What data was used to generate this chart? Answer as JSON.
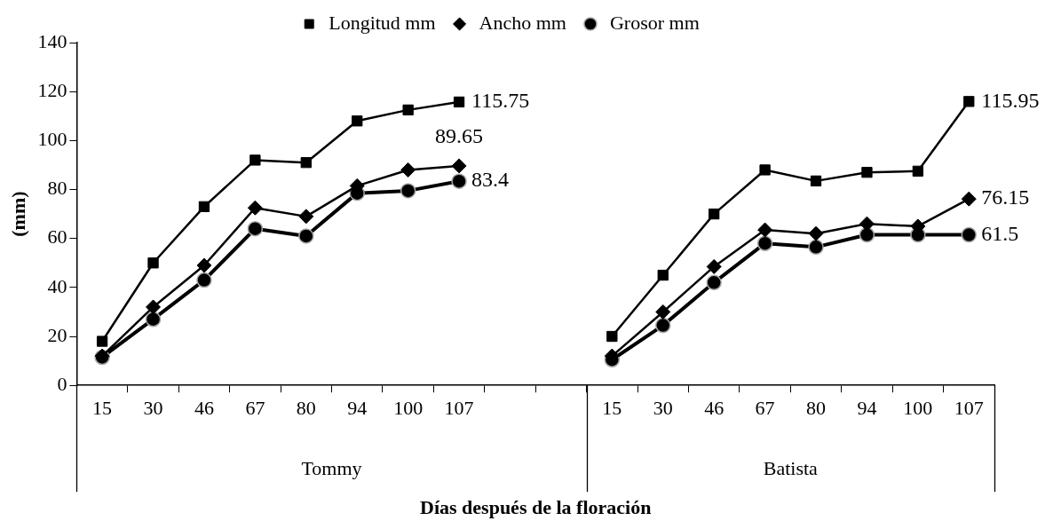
{
  "chart_data": {
    "type": "line",
    "xlabel": "Días después de la floración",
    "ylabel": "(mm)",
    "categories": [
      "15",
      "30",
      "46",
      "67",
      "80",
      "94",
      "100",
      "107",
      null,
      null,
      "15",
      "30",
      "46",
      "67",
      "80",
      "94",
      "100",
      "107"
    ],
    "annotations": [
      "Tommy",
      "Batista"
    ],
    "ylim": [
      0,
      140
    ],
    "yticks": [
      0,
      20,
      40,
      60,
      80,
      100,
      120,
      140
    ],
    "grid": false,
    "legend": "top",
    "series": [
      {
        "name": "Longitud mm",
        "color": "#000000",
        "marker": "square",
        "values": [
          18,
          50,
          73,
          92,
          91,
          108,
          112.5,
          115.75,
          null,
          null,
          20,
          45,
          70,
          88,
          83.5,
          87,
          87.5,
          115.95
        ],
        "value_labels": [
          null,
          null,
          null,
          null,
          null,
          null,
          null,
          "115.75",
          null,
          null,
          null,
          null,
          null,
          null,
          null,
          null,
          null,
          "115.95"
        ]
      },
      {
        "name": "Ancho mm",
        "color": "#000000",
        "marker": "diamond",
        "values": [
          12,
          32,
          49,
          72.5,
          69,
          81.5,
          88,
          89.65,
          null,
          null,
          12,
          30,
          48.5,
          63.5,
          62,
          66,
          65,
          76.15
        ],
        "value_labels": [
          null,
          null,
          null,
          null,
          null,
          null,
          null,
          "89.65",
          null,
          null,
          null,
          null,
          null,
          null,
          null,
          null,
          null,
          "76.15"
        ]
      },
      {
        "name": "Grosor mm",
        "color": "#000000",
        "marker": "circle",
        "values": [
          11.5,
          27,
          43,
          64,
          61,
          78.5,
          79.5,
          83.4,
          null,
          null,
          10.5,
          24.5,
          42,
          58,
          56.5,
          61.5,
          61.5,
          61.5
        ],
        "value_labels": [
          null,
          null,
          null,
          null,
          null,
          null,
          null,
          "83.4",
          null,
          null,
          null,
          null,
          null,
          null,
          null,
          null,
          null,
          "61.5"
        ]
      }
    ]
  }
}
